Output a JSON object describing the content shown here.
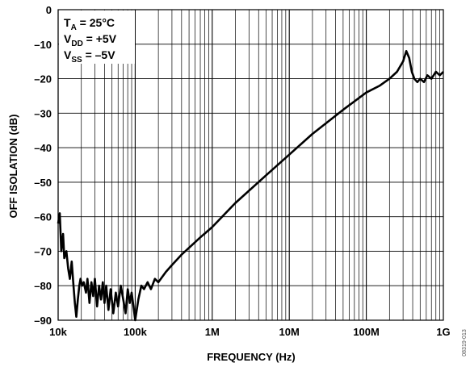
{
  "chart_data": {
    "type": "line",
    "x_scale": "log",
    "xlabel": "FREQUENCY (Hz)",
    "ylabel": "OFF ISOLATION (dB)",
    "xlim": [
      "10k",
      "1G"
    ],
    "ylim": [
      -90,
      0
    ],
    "grid": true,
    "x_tick_labels": [
      "10k",
      "100k",
      "1M",
      "10M",
      "100M",
      "1G"
    ],
    "y_tick_labels": [
      "0",
      "–10",
      "–20",
      "–30",
      "–40",
      "–50",
      "–60",
      "–70",
      "–80",
      "–90"
    ],
    "annotation": {
      "ta": "T",
      "ta_sub": "A",
      "ta_val": " = 25°C",
      "vdd": "V",
      "vdd_sub": "DD",
      "vdd_val": " = +5V",
      "vss": "V",
      "vss_sub": "SS",
      "vss_val": " = –5V"
    },
    "figure_id": "08319-013",
    "series": [
      {
        "color": "#000000",
        "x": [
          10000,
          10500,
          11000,
          11600,
          12000,
          12800,
          13500,
          14200,
          15000,
          15800,
          16500,
          17200,
          18000,
          18800,
          19500,
          20500,
          21500,
          23000,
          24000,
          25500,
          27000,
          28500,
          30000,
          32000,
          34000,
          36000,
          38000,
          40000,
          42000,
          45000,
          48000,
          52000,
          56000,
          60000,
          65000,
          70000,
          75000,
          80000,
          85000,
          90000,
          95000,
          100000,
          110000,
          120000,
          130000,
          145000,
          160000,
          180000,
          200000,
          250000,
          300000,
          400000,
          500000,
          700000,
          1000000,
          2000000,
          5000000,
          10000000,
          20000000,
          50000000,
          100000000,
          150000000,
          200000000,
          250000000,
          300000000,
          330000000,
          360000000,
          390000000,
          420000000,
          460000000,
          500000000,
          560000000,
          620000000,
          700000000,
          800000000,
          900000000,
          1000000000
        ],
        "y": [
          -62,
          -59,
          -70,
          -65,
          -72,
          -70,
          -75,
          -78,
          -73,
          -80,
          -85,
          -89,
          -84,
          -80,
          -78,
          -80,
          -79,
          -82,
          -78,
          -85,
          -79,
          -83,
          -78,
          -86,
          -80,
          -84,
          -79,
          -85,
          -80,
          -87,
          -81,
          -88,
          -82,
          -86,
          -80,
          -84,
          -88,
          -81,
          -85,
          -82,
          -86,
          -90,
          -84,
          -80,
          -81,
          -79,
          -81,
          -78,
          -79,
          -76,
          -74,
          -71,
          -69,
          -66,
          -63,
          -56,
          -48,
          -42,
          -36,
          -29,
          -24,
          -22,
          -20,
          -18,
          -15,
          -12,
          -14,
          -18,
          -20,
          -21,
          -20,
          -21,
          -19,
          -20,
          -18,
          -19,
          -18
        ]
      }
    ]
  }
}
